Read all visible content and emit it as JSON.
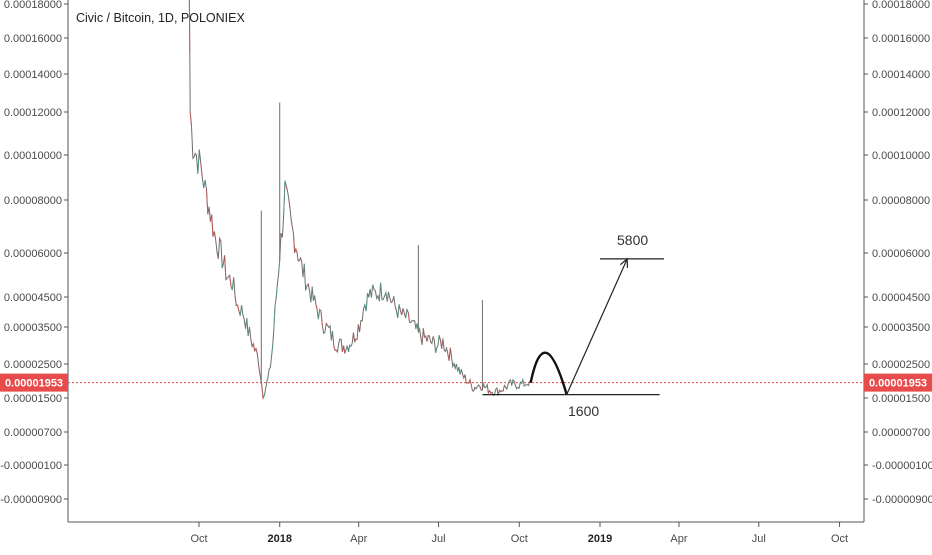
{
  "chart_data": {
    "type": "line",
    "title": "Civic / Bitcoin, 1D, POLONIEX",
    "y_tick_labels": [
      "0.00018000",
      "0.00016000",
      "0.00014000",
      "0.00012000",
      "0.00010000",
      "0.00008000",
      "0.00006000",
      "0.00004500",
      "0.00003500",
      "0.00002500",
      "0.00001500",
      "0.00000700",
      "-0.00000100",
      "-0.00000900"
    ],
    "y_tick_values": [
      0.00018,
      0.00016,
      0.00014,
      0.00012,
      0.0001,
      8e-05,
      6e-05,
      4.5e-05,
      3.5e-05,
      2.5e-05,
      1.5e-05,
      7e-06,
      -1e-06,
      -9e-06
    ],
    "x_tick_labels": [
      "Oct",
      "2018",
      "Apr",
      "Jul",
      "Oct",
      "2019",
      "Apr",
      "Jul",
      "Oct"
    ],
    "x_tick_dates": [
      "2017-10-01",
      "2018-01-01",
      "2018-04-01",
      "2018-07-01",
      "2018-10-01",
      "2019-01-01",
      "2019-04-01",
      "2019-07-01",
      "2019-10-01"
    ],
    "x_tick_bold": [
      false,
      true,
      false,
      false,
      false,
      true,
      false,
      false,
      false
    ],
    "current_price_label": "0.00001953",
    "current_price": 1.953e-05,
    "series": [
      {
        "x": [
          "2017-09-20",
          "2017-09-21",
          "2017-09-24",
          "2017-09-28",
          "2017-10-03",
          "2017-10-08",
          "2017-10-14",
          "2017-10-20",
          "2017-10-26",
          "2017-11-02",
          "2017-11-08",
          "2017-11-14",
          "2017-11-20",
          "2017-11-26",
          "2017-12-02",
          "2017-12-08",
          "2017-12-13",
          "2017-12-16",
          "2017-12-20",
          "2017-12-24",
          "2017-12-28",
          "2018-01-01",
          "2018-01-04",
          "2018-01-07",
          "2018-01-10",
          "2018-01-14",
          "2018-01-18",
          "2018-01-22",
          "2018-01-26",
          "2018-02-01",
          "2018-02-07",
          "2018-02-14",
          "2018-02-20",
          "2018-02-26",
          "2018-03-05",
          "2018-03-12",
          "2018-03-19",
          "2018-03-26",
          "2018-04-02",
          "2018-04-08",
          "2018-04-14",
          "2018-04-20",
          "2018-04-26",
          "2018-05-02",
          "2018-05-08",
          "2018-05-14",
          "2018-05-20",
          "2018-05-26",
          "2018-06-01",
          "2018-06-08",
          "2018-06-15",
          "2018-06-22",
          "2018-06-29",
          "2018-07-06",
          "2018-07-13",
          "2018-07-20",
          "2018-07-27",
          "2018-08-03",
          "2018-08-10",
          "2018-08-17",
          "2018-08-24",
          "2018-08-31",
          "2018-09-07",
          "2018-09-14",
          "2018-09-21",
          "2018-09-28",
          "2018-10-05",
          "2018-10-10",
          "2018-10-13"
        ],
        "y": [
          0.000185,
          0.00012,
          0.000105,
          0.0001,
          9.5e-05,
          8.5e-05,
          7.5e-05,
          6.5e-05,
          6e-05,
          5.2e-05,
          5e-05,
          4.2e-05,
          4e-05,
          3.4e-05,
          3e-05,
          2.6e-05,
          1.6e-05,
          1.8e-05,
          2.2e-05,
          3e-05,
          4.5e-05,
          6e-05,
          7e-05,
          8.5e-05,
          7.8e-05,
          7e-05,
          6.5e-05,
          6e-05,
          5.5e-05,
          5e-05,
          4.5e-05,
          4e-05,
          3.6e-05,
          3.4e-05,
          3.1e-05,
          3e-05,
          3e-05,
          3.2e-05,
          3.6e-05,
          4.3e-05,
          4.6e-05,
          4.6e-05,
          4.7e-05,
          4.8e-05,
          4.4e-05,
          4.1e-05,
          3.9e-05,
          3.8e-05,
          3.6e-05,
          3.3e-05,
          3.2e-05,
          3.1e-05,
          3e-05,
          3.1e-05,
          2.8e-05,
          2.5e-05,
          2.2e-05,
          2e-05,
          1.8e-05,
          1.9e-05,
          1.8e-05,
          1.7e-05,
          1.7e-05,
          1.8e-05,
          1.9e-05,
          1.9e-05,
          1.9e-05,
          1.95e-05,
          2e-05
        ]
      }
    ],
    "spikes": [
      {
        "x": "2017-12-11",
        "y": 7.6e-05
      },
      {
        "x": "2018-01-01",
        "y": 0.000125
      },
      {
        "x": "2018-06-08",
        "y": 6.3e-05
      },
      {
        "x": "2018-08-20",
        "y": 4.4e-05
      }
    ],
    "annotations": {
      "target_label": "5800",
      "support_label": "1600",
      "target_level": 5.8e-05,
      "support_level": 1.6e-05,
      "arc": {
        "start_date": "2018-10-14",
        "peak_date": "2018-11-01",
        "end_date": "2018-11-24",
        "start_value": 1.95e-05,
        "peak_value": 2.8e-05,
        "end_value": 1.6e-05
      },
      "arrow": {
        "start_date": "2018-11-24",
        "start_value": 1.6e-05,
        "end_date": "2019-02-01",
        "end_value": 5.8e-05
      },
      "target_segment": {
        "start_date": "2019-01-01",
        "end_date": "2019-03-15"
      },
      "support_segment": {
        "start_date": "2018-08-20",
        "end_date": "2019-03-10"
      }
    }
  }
}
